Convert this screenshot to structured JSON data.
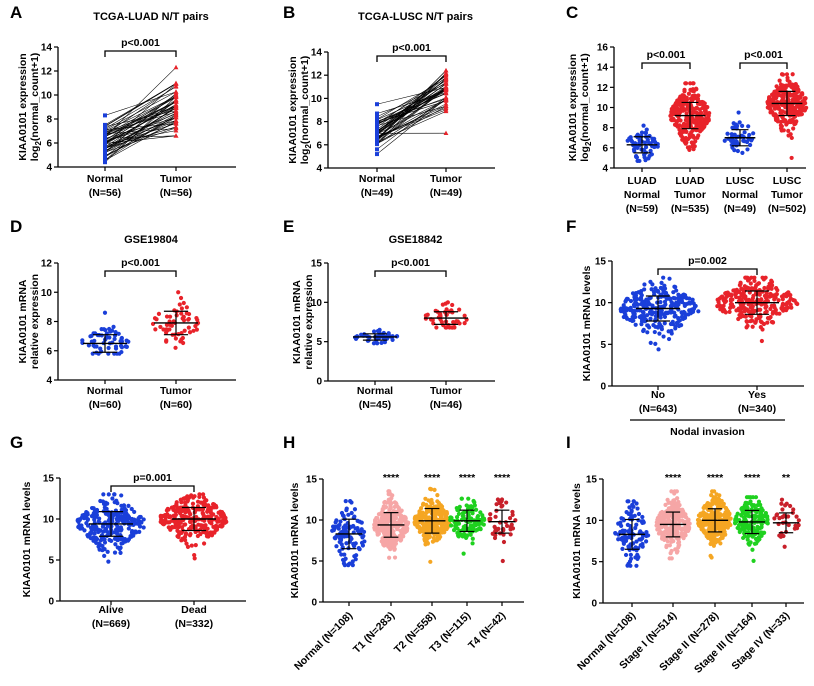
{
  "chart_data": [
    {
      "panel": "A",
      "type": "paired_line",
      "title": "TCGA-LUAD N/T pairs",
      "ylabel": "KIAA0101 expression",
      "ylabel2": "log2(normal_count+1)",
      "ylim": [
        4,
        14
      ],
      "yticks": [
        4,
        6,
        8,
        10,
        12,
        14
      ],
      "categories": [
        "Normal",
        "Tumor"
      ],
      "counts": [
        "(N=56)",
        "(N=56)"
      ],
      "colors": [
        "#1a3fd9",
        "#e8232a"
      ],
      "group_stats": [
        {
          "median": 6.2,
          "range": [
            4.4,
            8.3
          ]
        },
        {
          "median": 9.0,
          "range": [
            6.6,
            12.3
          ]
        }
      ],
      "n_pairs": 56,
      "significance": "p<0.001"
    },
    {
      "panel": "B",
      "type": "paired_line",
      "title": "TCGA-LUSC N/T pairs",
      "ylabel": "KIAA0101 expression",
      "ylabel2": "log2(normal_count+1)",
      "ylim": [
        4,
        14
      ],
      "yticks": [
        4,
        6,
        8,
        10,
        12,
        14
      ],
      "categories": [
        "Normal",
        "Tumor"
      ],
      "counts": [
        "(N=49)",
        "(N=49)"
      ],
      "colors": [
        "#1a3fd9",
        "#e8232a"
      ],
      "group_stats": [
        {
          "median": 7.0,
          "range": [
            5.2,
            9.5
          ]
        },
        {
          "median": 10.4,
          "range": [
            7.0,
            12.4
          ]
        }
      ],
      "n_pairs": 49,
      "significance": "p<0.001"
    },
    {
      "panel": "C",
      "type": "dotplot",
      "ylabel": "KIAA0101 expression",
      "ylabel2": "log2(normal_count+1)",
      "ylim": [
        4,
        16
      ],
      "yticks": [
        4,
        6,
        8,
        10,
        12,
        14,
        16
      ],
      "categories": [
        "LUAD Normal",
        "LUAD Tumor",
        "LUSC Normal",
        "LUSC Tumor"
      ],
      "cat_lines": [
        [
          "LUAD",
          "Normal",
          "(N=59)"
        ],
        [
          "LUAD",
          "Tumor",
          "(N=535)"
        ],
        [
          "LUSC",
          "Normal",
          "(N=49)"
        ],
        [
          "LUSC",
          "Tumor",
          "(N=502)"
        ]
      ],
      "colors": [
        "#1a3fd9",
        "#e8232a",
        "#1a3fd9",
        "#e8232a"
      ],
      "group_stats": [
        {
          "mean": 6.3,
          "sd": 0.8,
          "range": [
            4.7,
            8.2
          ],
          "n": 59
        },
        {
          "mean": 9.2,
          "sd": 1.3,
          "range": [
            5.8,
            12.4
          ],
          "n": 535
        },
        {
          "mean": 7.0,
          "sd": 0.8,
          "range": [
            5.5,
            9.5
          ],
          "n": 49
        },
        {
          "mean": 10.4,
          "sd": 1.2,
          "range": [
            5.0,
            13.3
          ],
          "n": 502
        }
      ],
      "comparisons": [
        {
          "groups": [
            0,
            1
          ],
          "label": "p<0.001"
        },
        {
          "groups": [
            2,
            3
          ],
          "label": "p<0.001"
        }
      ]
    },
    {
      "panel": "D",
      "type": "dotplot",
      "title": "GSE19804",
      "ylabel": "KIAA0101 mRNA",
      "ylabel2": "relative expression",
      "ylim": [
        4,
        12
      ],
      "yticks": [
        4,
        6,
        8,
        10,
        12
      ],
      "categories": [
        "Normal",
        "Tumor"
      ],
      "cat_lines": [
        [
          "Normal",
          "(N=60)"
        ],
        [
          "Tumor",
          "(N=60)"
        ]
      ],
      "colors": [
        "#1a3fd9",
        "#e8232a"
      ],
      "group_stats": [
        {
          "mean": 6.5,
          "sd": 0.6,
          "range": [
            5.8,
            8.6
          ],
          "n": 60
        },
        {
          "mean": 7.9,
          "sd": 0.8,
          "range": [
            6.2,
            10.0
          ],
          "n": 60
        }
      ],
      "comparisons": [
        {
          "groups": [
            0,
            1
          ],
          "label": "p<0.001"
        }
      ]
    },
    {
      "panel": "E",
      "type": "dotplot",
      "title": "GSE18842",
      "ylabel": "KIAA0101 mRNA",
      "ylabel2": "relative expression",
      "ylim": [
        0,
        15
      ],
      "yticks": [
        0,
        5,
        10,
        15
      ],
      "categories": [
        "Normal",
        "Tumor"
      ],
      "cat_lines": [
        [
          "Normal",
          "(N=45)"
        ],
        [
          "Tumor",
          "(N=46)"
        ]
      ],
      "colors": [
        "#1a3fd9",
        "#e8232a"
      ],
      "group_stats": [
        {
          "mean": 5.6,
          "sd": 0.4,
          "range": [
            4.8,
            6.5
          ],
          "n": 45
        },
        {
          "mean": 8.0,
          "sd": 0.8,
          "range": [
            6.8,
            10.0
          ],
          "n": 46
        }
      ],
      "comparisons": [
        {
          "groups": [
            0,
            1
          ],
          "label": "p<0.001"
        }
      ]
    },
    {
      "panel": "F",
      "type": "dotplot",
      "ylabel": "KIAA0101 mRNA levels",
      "ylim": [
        0,
        15
      ],
      "yticks": [
        0,
        5,
        10,
        15
      ],
      "categories": [
        "No",
        "Yes"
      ],
      "cat_lines": [
        [
          "No",
          "(N=643)"
        ],
        [
          "Yes",
          "(N=340)"
        ]
      ],
      "xlabel": "Nodal invasion",
      "colors": [
        "#1a3fd9",
        "#e8232a"
      ],
      "group_stats": [
        {
          "mean": 9.3,
          "sd": 1.5,
          "range": [
            4.4,
            13.0
          ],
          "n": 643
        },
        {
          "mean": 10.0,
          "sd": 1.4,
          "range": [
            5.4,
            13.0
          ],
          "n": 340
        }
      ],
      "comparisons": [
        {
          "groups": [
            0,
            1
          ],
          "label": "p=0.002"
        }
      ]
    },
    {
      "panel": "G",
      "type": "dotplot",
      "ylabel": "KIAA0101 mRNA levels",
      "ylim": [
        0,
        15
      ],
      "yticks": [
        0,
        5,
        10,
        15
      ],
      "categories": [
        "Alive",
        "Dead"
      ],
      "cat_lines": [
        [
          "Alive",
          "(N=669)"
        ],
        [
          "Dead",
          "(N=332)"
        ]
      ],
      "colors": [
        "#1a3fd9",
        "#e8232a"
      ],
      "group_stats": [
        {
          "mean": 9.4,
          "sd": 1.5,
          "range": [
            4.8,
            13.0
          ],
          "n": 669
        },
        {
          "mean": 10.0,
          "sd": 1.4,
          "range": [
            5.2,
            13.0
          ],
          "n": 332
        }
      ],
      "comparisons": [
        {
          "groups": [
            0,
            1
          ],
          "label": "p=0.001"
        }
      ]
    },
    {
      "panel": "H",
      "type": "dotplot",
      "ylabel": "KIAA0101 mRNA levels",
      "ylim": [
        0,
        15
      ],
      "yticks": [
        0,
        5,
        10,
        15
      ],
      "categories": [
        "Normal (N=108)",
        "T1 (N=283)",
        "T2 (N=558)",
        "T3 (N=115)",
        "T4 (N=42)"
      ],
      "rotated_labels": true,
      "colors": [
        "#1a3fd9",
        "#f6a6a6",
        "#f5a623",
        "#1fd11f",
        "#c8202a"
      ],
      "group_stats": [
        {
          "mean": 8.3,
          "sd": 1.8,
          "range": [
            4.5,
            12.3
          ],
          "n": 108
        },
        {
          "mean": 9.4,
          "sd": 1.5,
          "range": [
            5.4,
            13.5
          ],
          "n": 283
        },
        {
          "mean": 9.9,
          "sd": 1.5,
          "range": [
            4.9,
            13.8
          ],
          "n": 558
        },
        {
          "mean": 9.9,
          "sd": 1.3,
          "range": [
            5.9,
            12.6
          ],
          "n": 115
        },
        {
          "mean": 9.8,
          "sd": 1.4,
          "range": [
            5.0,
            12.5
          ],
          "n": 42
        }
      ],
      "stars": [
        "",
        "****",
        "****",
        "****",
        "****"
      ]
    },
    {
      "panel": "I",
      "type": "dotplot",
      "ylabel": "KIAA0101 mRNA levels",
      "ylim": [
        0,
        15
      ],
      "yticks": [
        0,
        5,
        10,
        15
      ],
      "categories": [
        "Normal (N=108)",
        "Stage I (N=514)",
        "Stage II (N=278)",
        "Stage III (N=164)",
        "Stage IV (N=33)"
      ],
      "rotated_labels": true,
      "colors": [
        "#1a3fd9",
        "#f6a6a6",
        "#f5a623",
        "#1fd11f",
        "#c8202a"
      ],
      "group_stats": [
        {
          "mean": 8.3,
          "sd": 1.8,
          "range": [
            4.5,
            12.3
          ],
          "n": 108
        },
        {
          "mean": 9.5,
          "sd": 1.5,
          "range": [
            5.4,
            13.5
          ],
          "n": 514
        },
        {
          "mean": 10.0,
          "sd": 1.4,
          "range": [
            5.5,
            13.5
          ],
          "n": 278
        },
        {
          "mean": 9.8,
          "sd": 1.4,
          "range": [
            5.1,
            12.8
          ],
          "n": 164
        },
        {
          "mean": 9.7,
          "sd": 1.2,
          "range": [
            6.8,
            12.5
          ],
          "n": 33
        }
      ],
      "stars": [
        "",
        "****",
        "****",
        "****",
        "**"
      ]
    }
  ]
}
